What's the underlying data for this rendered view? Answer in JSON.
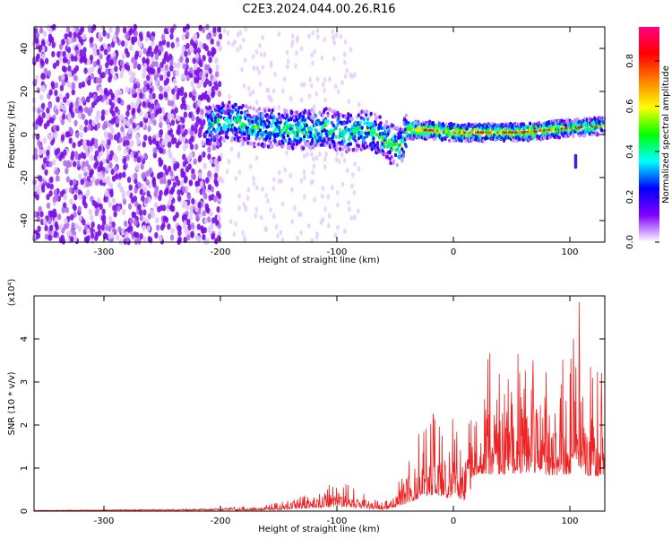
{
  "title": "C2E3.2024.044.00.26.R16",
  "chart_data": [
    {
      "type": "heatmap",
      "xlabel": "Height of straight line (km)",
      "ylabel": "Frequency (Hz)",
      "xlim": [
        -360,
        130
      ],
      "ylim": [
        -50,
        50
      ],
      "xticks": [
        -300,
        -200,
        -100,
        0,
        100
      ],
      "yticks": [
        40,
        20,
        0,
        -20,
        -40
      ],
      "colorbar": {
        "label": "Normalized spectral amplitude",
        "range": [
          0.0,
          0.95
        ],
        "ticks": [
          0.0,
          0.2,
          0.4,
          0.6,
          0.8
        ],
        "colormap": [
          "#ffffff",
          "#8000ff",
          "#0000ff",
          "#00ffff",
          "#00ff00",
          "#ffff00",
          "#ff8000",
          "#ff0000",
          "#ff0080"
        ]
      },
      "ridge": [
        {
          "x": -210,
          "y": 5
        },
        {
          "x": -190,
          "y": 6
        },
        {
          "x": -170,
          "y": 3
        },
        {
          "x": -150,
          "y": 3
        },
        {
          "x": -130,
          "y": 2
        },
        {
          "x": -110,
          "y": 3
        },
        {
          "x": -90,
          "y": 1
        },
        {
          "x": -75,
          "y": 2
        },
        {
          "x": -65,
          "y": 0
        },
        {
          "x": -55,
          "y": -4
        },
        {
          "x": -45,
          "y": -6
        },
        {
          "x": -40,
          "y": 2
        },
        {
          "x": -20,
          "y": 2
        },
        {
          "x": 0,
          "y": 1
        },
        {
          "x": 20,
          "y": 1
        },
        {
          "x": 40,
          "y": 1
        },
        {
          "x": 60,
          "y": 1
        },
        {
          "x": 80,
          "y": 2
        },
        {
          "x": 100,
          "y": 3
        },
        {
          "x": 130,
          "y": 4
        }
      ]
    },
    {
      "type": "line",
      "xlabel": "Height of straight line (km)",
      "ylabel": "SNR (10 * v/v)",
      "multiplier_label": "(x10⁴)",
      "xlim": [
        -360,
        130
      ],
      "ylim": [
        0,
        5
      ],
      "xticks": [
        -300,
        -200,
        -100,
        0,
        100
      ],
      "yticks": [
        0,
        1,
        2,
        3,
        4
      ],
      "color": "#ee2222",
      "envelope": [
        {
          "x": -360,
          "y": 0.02
        },
        {
          "x": -250,
          "y": 0.04
        },
        {
          "x": -200,
          "y": 0.06
        },
        {
          "x": -180,
          "y": 0.12
        },
        {
          "x": -150,
          "y": 0.2
        },
        {
          "x": -130,
          "y": 0.35
        },
        {
          "x": -110,
          "y": 0.6
        },
        {
          "x": -95,
          "y": 0.7
        },
        {
          "x": -80,
          "y": 0.45
        },
        {
          "x": -60,
          "y": 0.2
        },
        {
          "x": -50,
          "y": 0.6
        },
        {
          "x": -35,
          "y": 1.5
        },
        {
          "x": -25,
          "y": 2.3
        },
        {
          "x": -15,
          "y": 2.5
        },
        {
          "x": -5,
          "y": 2.0
        },
        {
          "x": 0,
          "y": 2.3
        },
        {
          "x": 10,
          "y": 1.6
        },
        {
          "x": 15,
          "y": 3.2
        },
        {
          "x": 25,
          "y": 3.8
        },
        {
          "x": 40,
          "y": 3.6
        },
        {
          "x": 55,
          "y": 3.9
        },
        {
          "x": 70,
          "y": 3.9
        },
        {
          "x": 85,
          "y": 3.5
        },
        {
          "x": 100,
          "y": 3.7
        },
        {
          "x": 108,
          "y": 4.9
        },
        {
          "x": 115,
          "y": 3.4
        },
        {
          "x": 130,
          "y": 3.5
        }
      ]
    }
  ]
}
